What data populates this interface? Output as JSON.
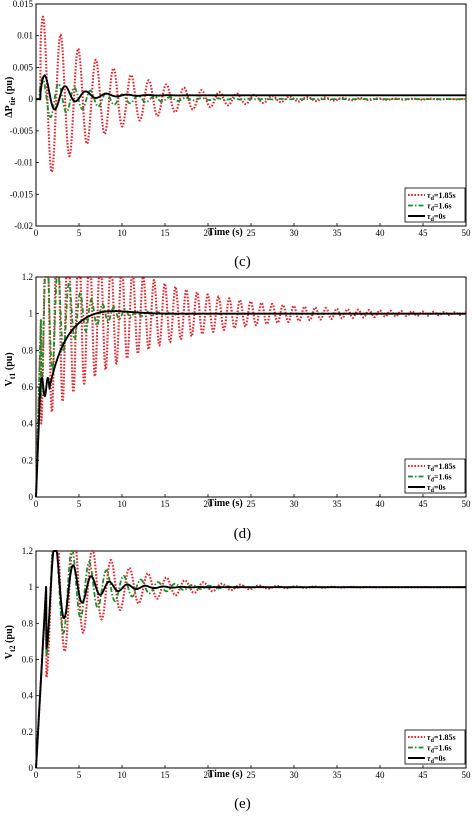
{
  "chart_data": [
    {
      "type": "line",
      "panel_label": "(c)",
      "ylabel_main": "ΔP",
      "ylabel_sub": "tie",
      "ylabel_unit": "(pu)",
      "xlabel": "Time (s)",
      "xlim": [
        0,
        50
      ],
      "ylim": [
        -0.02,
        0.015
      ],
      "xticks": [
        "0",
        "5",
        "10",
        "15",
        "20",
        "25",
        "30",
        "35",
        "40",
        "45",
        "50"
      ],
      "yticks": [
        "-0.02",
        "-0.015",
        "-0.01",
        "-0.005",
        "0",
        "0.005",
        "0.01",
        "0.015"
      ],
      "legend_position": "bottom-right",
      "series": [
        {
          "name": "τd=1.85s",
          "legend_prefix": "τ",
          "legend_sub": "d",
          "legend_suffix": "=1.85s",
          "color": "#e8212a",
          "style": "dotted",
          "model": {
            "kind": "osc",
            "base": 0,
            "amp": 0.0135,
            "decay": 0.12,
            "period": 2.05,
            "phase": 0.6,
            "delay": 0.5
          }
        },
        {
          "name": "τd=1.6s",
          "legend_prefix": "τ",
          "legend_sub": "d",
          "legend_suffix": "=1.6s",
          "color": "#1a8f2a",
          "style": "dashdot",
          "model": {
            "kind": "osc",
            "base": 0,
            "amp": 0.0035,
            "decay": 0.16,
            "period": 1.85,
            "phase": 0.3,
            "delay": 0.4
          }
        },
        {
          "name": "τd=0s",
          "legend_prefix": "τ",
          "legend_sub": "d",
          "legend_suffix": "=0s",
          "color": "#000000",
          "style": "solid",
          "model": {
            "kind": "osc",
            "base": 0.0006,
            "amp": 0.004,
            "decay": 0.35,
            "period": 2.4,
            "phase": 0.2,
            "delay": 0.5
          }
        }
      ]
    },
    {
      "type": "line",
      "panel_label": "(d)",
      "ylabel_main": "V",
      "ylabel_sub": "t1",
      "ylabel_unit": "(pu)",
      "xlabel": "Time (s)",
      "xlim": [
        0,
        50
      ],
      "ylim": [
        0,
        1.2
      ],
      "xticks": [
        "0",
        "5",
        "10",
        "15",
        "20",
        "25",
        "30",
        "35",
        "40",
        "45",
        "50"
      ],
      "yticks": [
        "0",
        "0.2",
        "0.4",
        "0.6",
        "0.8",
        "1",
        "1.2"
      ],
      "legend_position": "bottom-right",
      "series": [
        {
          "name": "τd=1.85s",
          "legend_prefix": "τ",
          "legend_sub": "d",
          "legend_suffix": "=1.85s",
          "color": "#e8212a",
          "style": "dotted",
          "model": {
            "kind": "step",
            "rise": 0.6,
            "settle": 1.0,
            "amp": 0.6,
            "decay": 0.09,
            "period": 1.25,
            "phase": 0
          }
        },
        {
          "name": "τd=1.6s",
          "legend_prefix": "τ",
          "legend_sub": "d",
          "legend_suffix": "=1.6s",
          "color": "#1a8f2a",
          "style": "dashdot",
          "model": {
            "kind": "step",
            "rise": 0.6,
            "settle": 1.0,
            "amp": 0.45,
            "decay": 0.3,
            "period": 1.3,
            "phase": 0
          }
        },
        {
          "name": "τd=0s",
          "legend_prefix": "τ",
          "legend_sub": "d",
          "legend_suffix": "=0s",
          "color": "#000000",
          "style": "solid",
          "model": {
            "kind": "smooth",
            "start": 0.6,
            "settle": 1.0,
            "tau": 1.9,
            "overshoot": 0.025
          }
        }
      ]
    },
    {
      "type": "line",
      "panel_label": "(e)",
      "ylabel_main": "V",
      "ylabel_sub": "t2",
      "ylabel_unit": "(pu)",
      "xlabel": "Time (s)",
      "xlim": [
        0,
        50
      ],
      "ylim": [
        0,
        1.2
      ],
      "xticks": [
        "0",
        "5",
        "10",
        "15",
        "20",
        "25",
        "30",
        "35",
        "40",
        "45",
        "50"
      ],
      "yticks": [
        "0",
        "0.2",
        "0.4",
        "0.6",
        "0.8",
        "1",
        "1.2"
      ],
      "legend_position": "bottom-right",
      "series": [
        {
          "name": "τd=1.85s",
          "legend_prefix": "τ",
          "legend_sub": "d",
          "legend_suffix": "=1.85s",
          "color": "#e8212a",
          "style": "dotted",
          "model": {
            "kind": "step",
            "rise": 1.2,
            "settle": 1.0,
            "amp": 0.5,
            "decay": 0.16,
            "period": 2.15,
            "phase": 0
          }
        },
        {
          "name": "τd=1.6s",
          "legend_prefix": "τ",
          "legend_sub": "d",
          "legend_suffix": "=1.6s",
          "color": "#1a8f2a",
          "style": "dashdot",
          "model": {
            "kind": "step",
            "rise": 1.2,
            "settle": 1.0,
            "amp": 0.38,
            "decay": 0.2,
            "period": 2.0,
            "phase": 0
          }
        },
        {
          "name": "τd=0s",
          "legend_prefix": "τ",
          "legend_sub": "d",
          "legend_suffix": "=0s",
          "color": "#000000",
          "style": "solid",
          "model": {
            "kind": "step",
            "rise": 1.2,
            "settle": 1.0,
            "amp": 0.34,
            "decay": 0.33,
            "period": 2.1,
            "phase": 0
          }
        }
      ]
    }
  ]
}
